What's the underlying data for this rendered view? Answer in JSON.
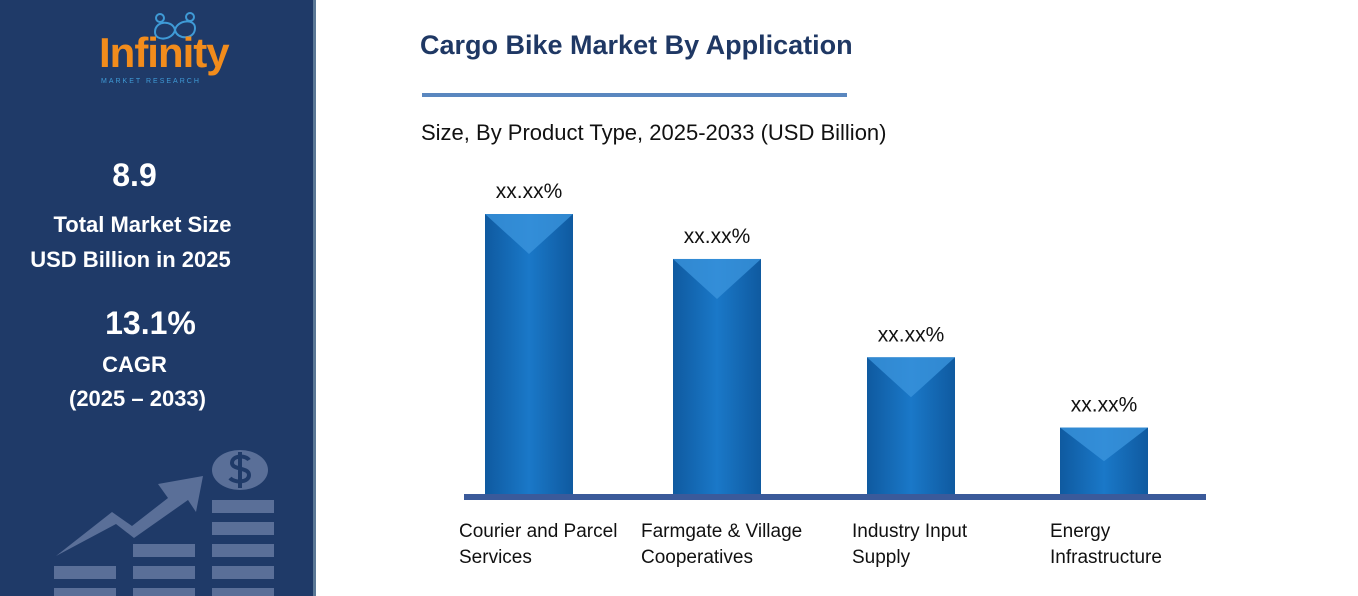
{
  "logo": {
    "name": "Infinity",
    "tagline": "MARKET RESEARCH"
  },
  "sidebar": {
    "market_size": "8.9",
    "market_size_label_1": "Total Market Size",
    "market_size_label_2": "USD Billion in 2025",
    "cagr": "13.1%",
    "cagr_label": "CAGR",
    "cagr_period": "(2025 – 2033)",
    "illustration": "growth-chart-dollar-icon"
  },
  "colors": {
    "sidebar": "#1f3a68",
    "title": "#1f3864",
    "bar": "#1a73c2",
    "axis": "#3b5a9a"
  },
  "chart_data": {
    "type": "bar",
    "title": "Cargo Bike Market By Application",
    "subtitle": "Size, By Product Type, 2025-2033 (USD Billion)",
    "categories": [
      "Courier and Parcel Services",
      "Farmgate & Village Cooperatives",
      "Industry Input Supply",
      "Energy Infrastructure"
    ],
    "category_lines": [
      [
        "Courier and Parcel",
        "Services"
      ],
      [
        "Farmgate & Village",
        "Cooperatives"
      ],
      [
        "Industry Input",
        "Supply"
      ],
      [
        "Energy",
        "Infrastructure"
      ]
    ],
    "values": [
      100,
      84,
      49,
      24
    ],
    "data_labels": [
      "xx.xx%",
      "xx.xx%",
      "xx.xx%",
      "xx.xx%"
    ],
    "grid": false,
    "legend": "none"
  }
}
